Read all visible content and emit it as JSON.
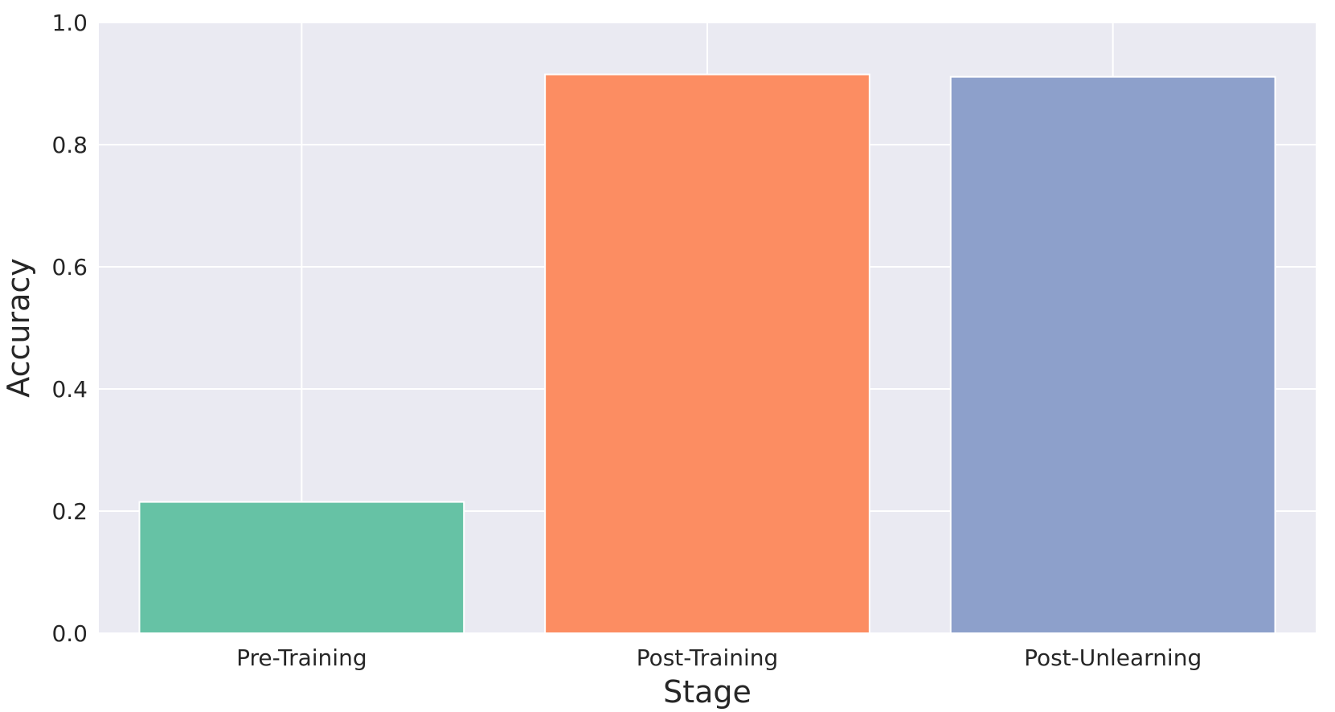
{
  "chart_data": {
    "type": "bar",
    "title": "",
    "xlabel": "Stage",
    "ylabel": "Accuracy",
    "categories": [
      "Pre-Training",
      "Post-Training",
      "Post-Unlearning"
    ],
    "values": [
      0.215,
      0.915,
      0.911
    ],
    "colors": [
      "#66c2a5",
      "#fc8d62",
      "#8da0cb"
    ],
    "ylim": [
      0.0,
      1.0
    ],
    "yticks": [
      "0.0",
      "0.2",
      "0.4",
      "0.6",
      "0.8",
      "1.0"
    ],
    "grid": true,
    "background_color": "#eaeaf2",
    "grid_color": "#ffffff"
  }
}
